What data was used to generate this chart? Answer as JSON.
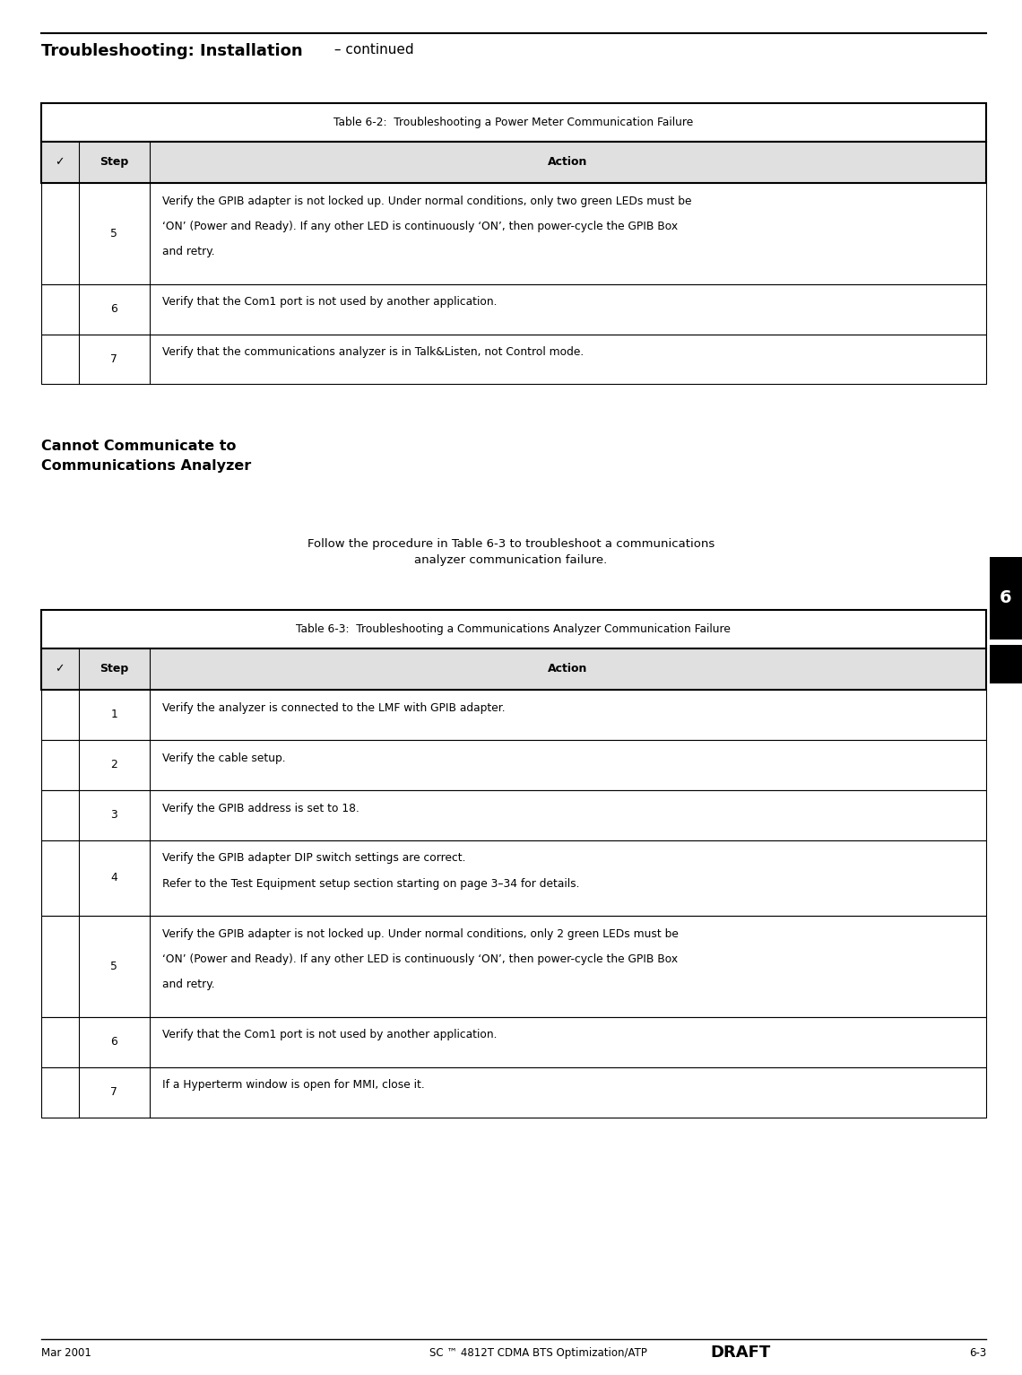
{
  "page_title_bold": "Troubleshooting: Installation",
  "page_title_normal": " – continued",
  "table1_title": "Table 6-2:  Troubleshooting a Power Meter Communication Failure",
  "table1_rows": [
    {
      "step": "5",
      "action": "Verify the GPIB adapter is not locked up. Under normal conditions, only two green LEDs must be\n‘ON’ (Power and Ready). If any other LED is continuously ‘ON’, then power-cycle the GPIB Box\nand retry."
    },
    {
      "step": "6",
      "action": "Verify that the Com1 port is not used by another application."
    },
    {
      "step": "7",
      "action": "Verify that the communications analyzer is in Talk&Listen, not Control mode."
    }
  ],
  "section_heading": "Cannot Communicate to\nCommunications Analyzer",
  "para_text": "Follow the procedure in Table 6-3 to troubleshoot a communications\nanalyzer communication failure.",
  "table2_title": "Table 6-3:  Troubleshooting a Communications Analyzer Communication Failure",
  "table2_rows": [
    {
      "step": "1",
      "action": "Verify the analyzer is connected to the LMF with GPIB adapter."
    },
    {
      "step": "2",
      "action": "Verify the cable setup."
    },
    {
      "step": "3",
      "action": "Verify the GPIB address is set to 18."
    },
    {
      "step": "4",
      "action": "Verify the GPIB adapter DIP switch settings are correct.\nRefer to the Test Equipment setup section starting on page 3–34 for details."
    },
    {
      "step": "5",
      "action": "Verify the GPIB adapter is not locked up. Under normal conditions, only 2 green LEDs must be\n‘ON’ (Power and Ready). If any other LED is continuously ‘ON’, then power-cycle the GPIB Box\nand retry."
    },
    {
      "step": "6",
      "action": "Verify that the Com1 port is not used by another application."
    },
    {
      "step": "7",
      "action": "If a Hyperterm window is open for MMI, close it."
    }
  ],
  "footer_left": "Mar 2001",
  "footer_center": "SC ™ 4812T CDMA BTS Optimization/ATP",
  "footer_center_bold": "DRAFT",
  "footer_right": "6-3",
  "side_tab_number": "6",
  "bg_color": "#ffffff",
  "text_color": "#000000",
  "border_color": "#000000"
}
